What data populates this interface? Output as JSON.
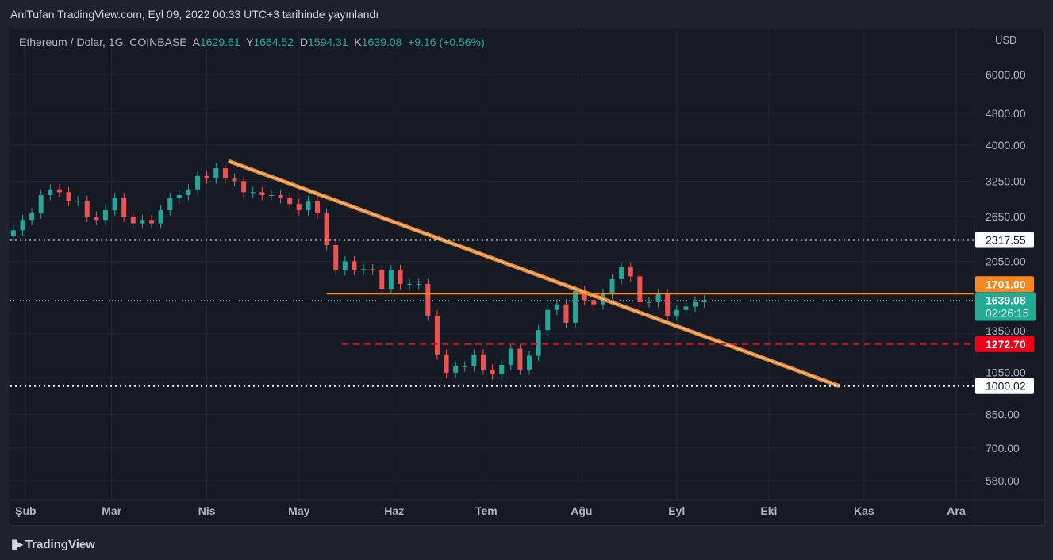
{
  "publish_line": "AnlTufan TradingView.com, Eyl 09, 2022 00:33 UTC+3 tarihinde yayınlandı",
  "legend": {
    "symbol": "Ethereum / Dolar, 1G, COINBASE",
    "o_label": "A",
    "o": "1629.61",
    "h_label": "Y",
    "h": "1664.52",
    "l_label": "D",
    "l": "1594.31",
    "c_label": "K",
    "c": "1639.08",
    "change": "+9.16 (+0.56%)"
  },
  "footer": {
    "brand": "TradingView"
  },
  "colors": {
    "up": "#26a69a",
    "down": "#ef5350",
    "orange": "#f7861f",
    "red": "#f00018",
    "teal": "#22ab94"
  },
  "chart_data": {
    "type": "candlestick",
    "title": "Ethereum / Dolar, 1G, COINBASE",
    "currency": "USD",
    "yscale": "log",
    "ylim": [
      580,
      6000
    ],
    "y_ticks": [
      "6000.00",
      "4800.00",
      "4000.00",
      "3250.00",
      "2650.00",
      "2050.00",
      "1350.00",
      "1050.00",
      "850.00",
      "700.00",
      "580.00"
    ],
    "x_ticks": [
      {
        "label": "Şub",
        "day": 5
      },
      {
        "label": "Mar",
        "day": 33
      },
      {
        "label": "Nis",
        "day": 64
      },
      {
        "label": "May",
        "day": 94
      },
      {
        "label": "Haz",
        "day": 125
      },
      {
        "label": "Tem",
        "day": 155
      },
      {
        "label": "Ağu",
        "day": 186
      },
      {
        "label": "Eyl",
        "day": 217
      },
      {
        "label": "Eki",
        "day": 247
      },
      {
        "label": "Kas",
        "day": 278
      },
      {
        "label": "Ara",
        "day": 308
      }
    ],
    "start_date": "2022-01-27",
    "step_days": 3,
    "closes": [
      2450,
      2600,
      2700,
      3000,
      3100,
      3050,
      2900,
      2900,
      2650,
      2600,
      2750,
      2950,
      2650,
      2550,
      2600,
      2550,
      2750,
      2950,
      3000,
      3100,
      3350,
      3300,
      3500,
      3300,
      3250,
      3050,
      3050,
      3000,
      3000,
      2950,
      2850,
      2750,
      2900,
      2700,
      2250,
      1950,
      2050,
      1950,
      1960,
      1950,
      1750,
      1950,
      1800,
      1800,
      1800,
      1500,
      1200,
      1080,
      1120,
      1120,
      1200,
      1100,
      1070,
      1130,
      1240,
      1100,
      1190,
      1380,
      1550,
      1600,
      1440,
      1730,
      1640,
      1600,
      1700,
      1850,
      1980,
      1880,
      1620,
      1620,
      1700,
      1500,
      1550,
      1580,
      1620,
      1639
    ],
    "price_labels": [
      {
        "value": 2317.55,
        "text": "2317.55",
        "style": "white-dotted"
      },
      {
        "value": 1701.0,
        "text": "1701.00",
        "style": "orange"
      },
      {
        "value": 1639.08,
        "text": "1639.08",
        "sub": "02:26:15",
        "style": "teal-current"
      },
      {
        "value": 1272.7,
        "text": "1272.70",
        "style": "red-dashed"
      },
      {
        "value": 1000.02,
        "text": "1000.02",
        "style": "white-dotted"
      }
    ],
    "trendline": {
      "from": {
        "day": 71,
        "price": 3650
      },
      "to": {
        "day": 270,
        "price": 1000
      }
    },
    "horizontal_from_day": {
      "1701": 103,
      "1272.7": 108
    }
  }
}
